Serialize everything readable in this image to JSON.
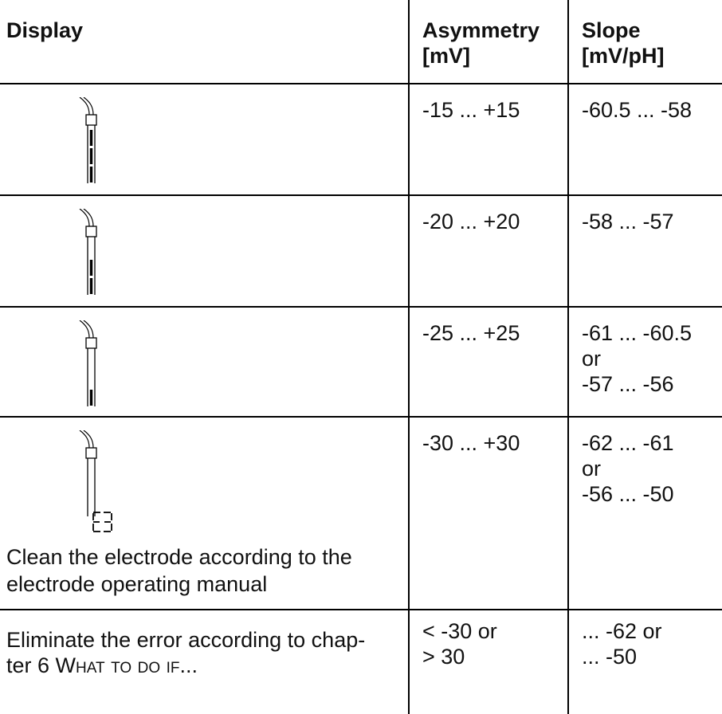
{
  "table": {
    "headers": {
      "display": "Display",
      "asymmetry": [
        "Asymmetry",
        "[mV]"
      ],
      "slope": [
        "Slope",
        "[mV/pH]"
      ]
    },
    "rows": [
      {
        "electrode_segments": 3,
        "asymmetry": "-15 ... +15",
        "slope": [
          "-60.5 ... -58"
        ]
      },
      {
        "electrode_segments": 2,
        "asymmetry": "-20 ... +20",
        "slope": [
          "-58 ... -57"
        ]
      },
      {
        "electrode_segments": 1,
        "asymmetry": "-25 ... +25",
        "slope": [
          "-61 ... -60.5",
          "or",
          "-57 ... -56"
        ]
      },
      {
        "electrode_segments": 0,
        "asymmetry": "-30 ... +30",
        "slope": [
          "-62 ... -61",
          "or",
          "-56 ... -50"
        ],
        "note": [
          "Clean the electrode according to the",
          "electrode operating manual"
        ]
      },
      {
        "error_code": "E3",
        "asymmetry": [
          "< -30 or",
          "> 30"
        ],
        "slope": [
          "... -62 or",
          "... -50"
        ],
        "note": [
          "Eliminate the error according to chap-",
          "ter 6 "
        ],
        "note_link": "What to do if..."
      }
    ]
  }
}
